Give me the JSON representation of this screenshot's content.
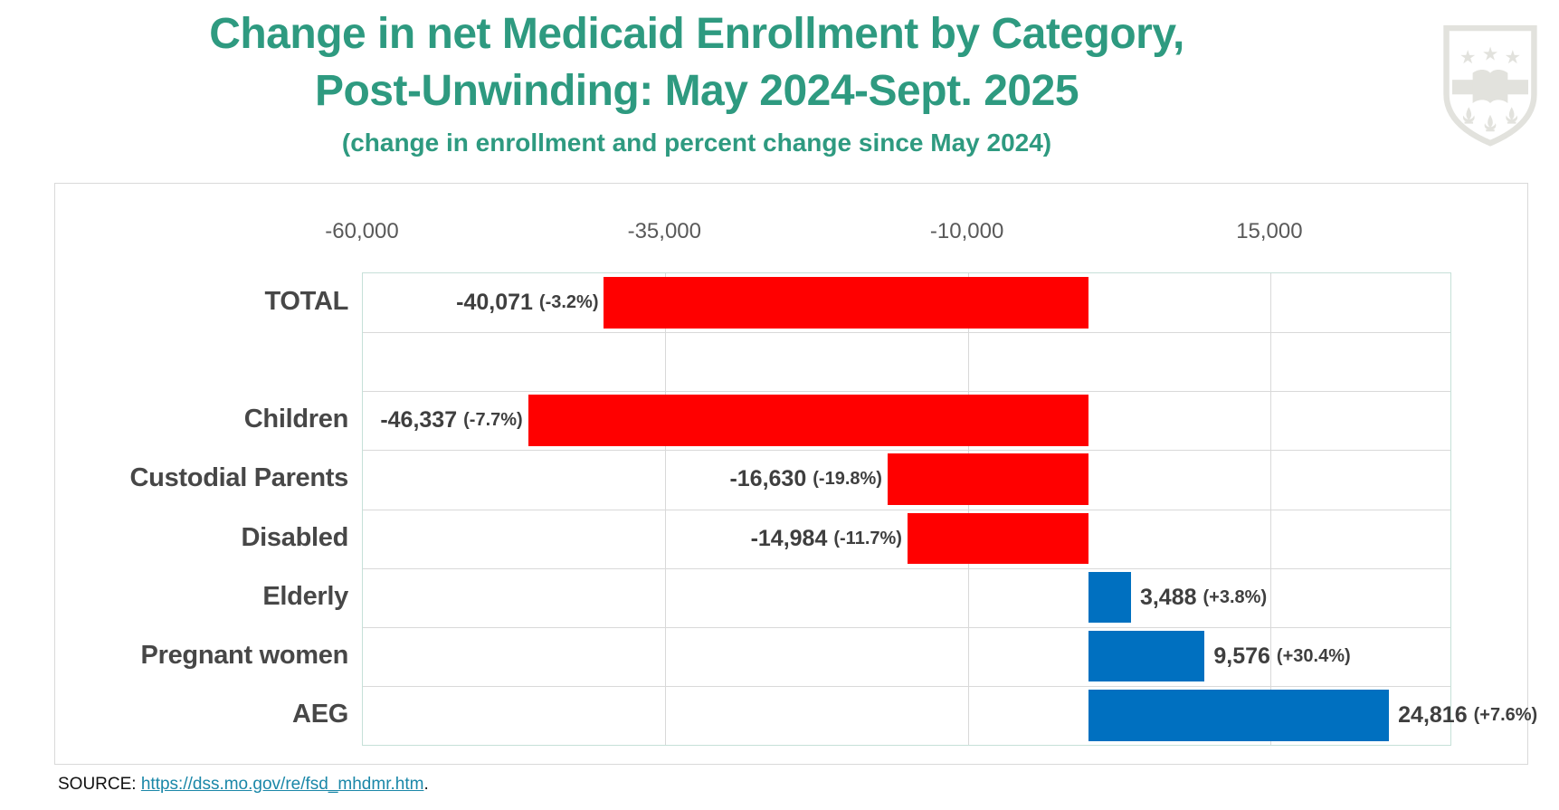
{
  "header": {
    "title_line1": "Change in net Medicaid Enrollment by Category,",
    "title_line2": "Post-Unwinding: May 2024-Sept. 2025",
    "subtitle": "(change in enrollment and percent change since May 2024)",
    "title_color": "#2e9a80"
  },
  "logo": {
    "description": "university-shield-logo",
    "color": "#e2e2dd"
  },
  "chart_data": {
    "type": "bar",
    "orientation": "horizontal",
    "title": "Change in net Medicaid Enrollment by Category, Post-Unwinding: May 2024-Sept. 2025",
    "subtitle": "(change in enrollment and percent change since May 2024)",
    "xlim": [
      -60000,
      29890
    ],
    "x_ticks": [
      {
        "label": "-60,000",
        "value": -60000
      },
      {
        "label": "-35,000",
        "value": -35000
      },
      {
        "label": "-10,000",
        "value": -10000
      },
      {
        "label": "15,000",
        "value": 15000
      }
    ],
    "grid": true,
    "rows": 8,
    "negative_color": "#ff0000",
    "positive_color": "#0070c0",
    "bars": [
      {
        "category": "TOTAL",
        "value": -40071,
        "value_label": "-40,071",
        "pct_label": "(-3.2%)",
        "row": 0
      },
      {
        "category": "Children",
        "value": -46337,
        "value_label": "-46,337",
        "pct_label": "(-7.7%)",
        "row": 2
      },
      {
        "category": "Custodial Parents",
        "value": -16630,
        "value_label": "-16,630",
        "pct_label": "(-19.8%)",
        "row": 3
      },
      {
        "category": "Disabled",
        "value": -14984,
        "value_label": "-14,984",
        "pct_label": "(-11.7%)",
        "row": 4
      },
      {
        "category": "Elderly",
        "value": 3488,
        "value_label": "3,488",
        "pct_label": "(+3.8%)",
        "row": 5
      },
      {
        "category": "Pregnant women",
        "value": 9576,
        "value_label": "9,576",
        "pct_label": "(+30.4%)",
        "row": 6
      },
      {
        "category": "AEG",
        "value": 24816,
        "value_label": "24,816",
        "pct_label": "(+7.6%)",
        "row": 7
      }
    ]
  },
  "source": {
    "prefix": "SOURCE: ",
    "link_text": "https://dss.mo.gov/re/fsd_mhdmr.htm",
    "suffix": "."
  }
}
